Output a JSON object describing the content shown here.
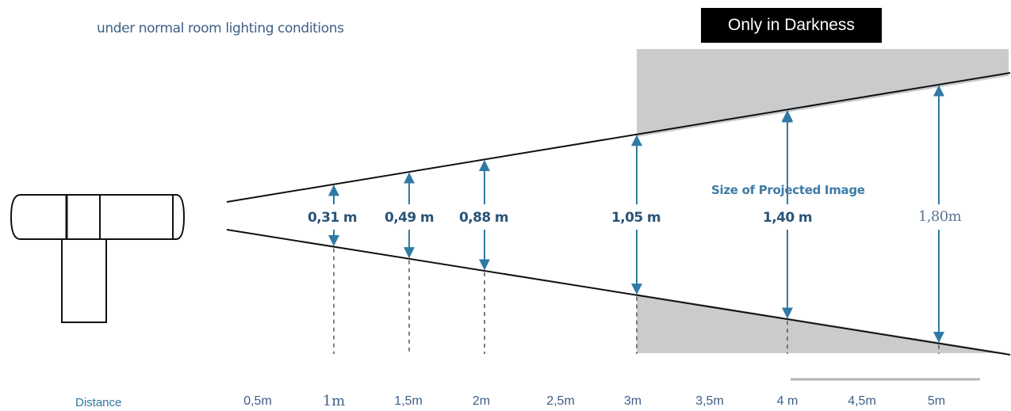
{
  "captions": {
    "normal_lighting": "under normal room lighting conditions",
    "darkness": "Only in Darkness",
    "projected_image": "Size of Projected Image"
  },
  "axis": {
    "title": "Distance",
    "ticks": [
      "0,5m",
      "1m",
      "1,5m",
      "2m",
      "2,5m",
      "3m",
      "3,5m",
      "4 m",
      "4,5m",
      "5m"
    ]
  },
  "measurements": [
    "0,31 m",
    "0,49 m",
    "0,88 m",
    "1,05 m",
    "1,40 m",
    "1,80m"
  ],
  "colors": {
    "arrow": "#2f7aa4",
    "dark_zone": "#c9cbcd",
    "text": "#3d5f86"
  },
  "icons": {
    "projector": "projector-icon"
  }
}
